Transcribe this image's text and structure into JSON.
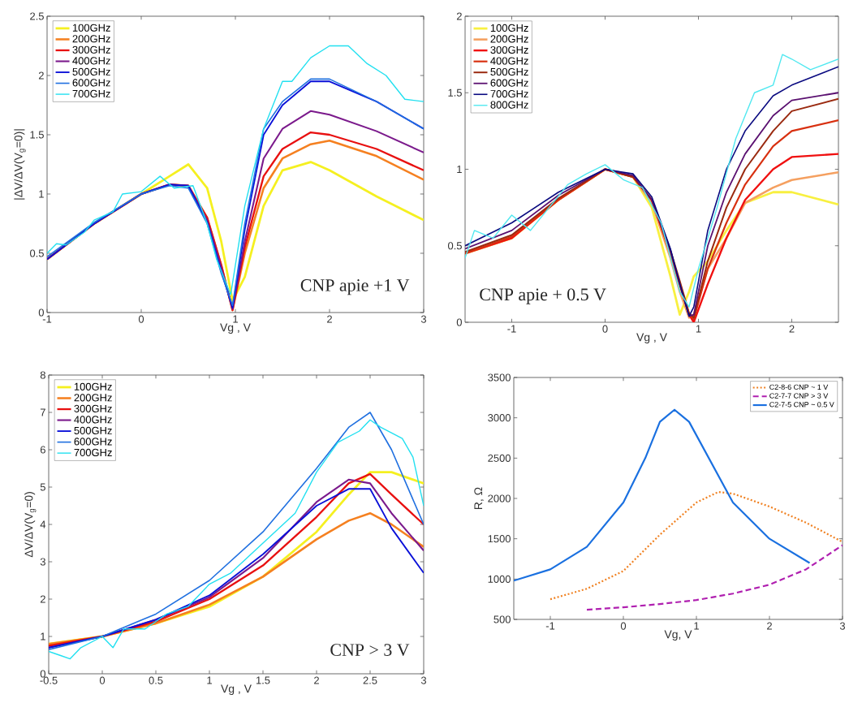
{
  "chart_data": [
    {
      "type": "line",
      "xlabel": "Vg , V",
      "ylabel": "|ΔV/ΔV(V$_{g}$=0)|",
      "xlim": [
        -1,
        3
      ],
      "ylim": [
        0,
        2.5
      ],
      "xticks": [
        -1,
        0,
        1,
        2,
        3
      ],
      "yticks": [
        0,
        0.5,
        1,
        1.5,
        2,
        2.5
      ],
      "legend": "top left",
      "annotations": [
        "CNP apie +1 V"
      ],
      "x": [
        -1,
        -0.5,
        0,
        0.3,
        0.5,
        0.7,
        0.85,
        0.97,
        1.1,
        1.3,
        1.5,
        1.8,
        2,
        2.5,
        3
      ],
      "series": [
        {
          "name": "100GHz",
          "color": "#f5f020",
          "values": [
            0.45,
            0.75,
            1.0,
            1.15,
            1.25,
            1.05,
            0.6,
            0.1,
            0.3,
            0.9,
            1.2,
            1.27,
            1.2,
            0.98,
            0.78
          ]
        },
        {
          "name": "200GHz",
          "color": "#f58020",
          "values": [
            0.45,
            0.75,
            1.0,
            1.08,
            1.07,
            0.8,
            0.4,
            0.02,
            0.5,
            1.05,
            1.3,
            1.42,
            1.45,
            1.32,
            1.12
          ]
        },
        {
          "name": "300GHz",
          "color": "#e81010",
          "values": [
            0.45,
            0.75,
            1.0,
            1.08,
            1.07,
            0.8,
            0.4,
            0.02,
            0.55,
            1.15,
            1.38,
            1.52,
            1.5,
            1.38,
            1.2
          ]
        },
        {
          "name": "400GHz",
          "color": "#7b1a8c",
          "values": [
            0.45,
            0.75,
            1.0,
            1.08,
            1.07,
            0.78,
            0.38,
            0.03,
            0.6,
            1.3,
            1.55,
            1.7,
            1.67,
            1.53,
            1.35
          ]
        },
        {
          "name": "500GHz",
          "color": "#0a10d8",
          "values": [
            0.45,
            0.75,
            1.0,
            1.08,
            1.07,
            0.76,
            0.35,
            0.04,
            0.7,
            1.5,
            1.75,
            1.95,
            1.95,
            1.78,
            1.55
          ]
        },
        {
          "name": "600GHz",
          "color": "#2070e0",
          "values": [
            0.47,
            0.76,
            1.0,
            1.07,
            1.05,
            0.75,
            0.33,
            0.06,
            0.75,
            1.55,
            1.78,
            1.97,
            1.97,
            1.78,
            1.55
          ]
        },
        {
          "name": "700GHz",
          "color": "#22e0f0",
          "x": [
            -1,
            -0.9,
            -0.8,
            -0.6,
            -0.5,
            -0.3,
            -0.2,
            0,
            0.2,
            0.35,
            0.55,
            0.7,
            0.8,
            0.95,
            1.1,
            1.3,
            1.5,
            1.6,
            1.8,
            2,
            2.2,
            2.4,
            2.6,
            2.8,
            3
          ],
          "values": [
            0.5,
            0.58,
            0.57,
            0.68,
            0.78,
            0.85,
            1.0,
            1.02,
            1.15,
            1.05,
            1.07,
            0.75,
            0.45,
            0.15,
            0.9,
            1.55,
            1.95,
            1.95,
            2.15,
            2.25,
            2.25,
            2.1,
            2.0,
            1.8,
            1.78
          ]
        }
      ]
    },
    {
      "type": "line",
      "xlabel": "Vg , V",
      "xlim": [
        -1.5,
        2.5
      ],
      "ylim": [
        0,
        2
      ],
      "xticks": [
        -1,
        0,
        1,
        2
      ],
      "yticks": [
        0,
        0.5,
        1,
        1.5,
        2
      ],
      "legend": "top left",
      "annotations": [
        "CNP apie + 0.5 V"
      ],
      "x": [
        -1.5,
        -1,
        -0.5,
        0,
        0.3,
        0.5,
        0.7,
        0.8,
        0.9,
        0.95,
        1.1,
        1.3,
        1.5,
        1.8,
        2,
        2.5
      ],
      "series": [
        {
          "name": "100GHz",
          "color": "#f8f040",
          "values": [
            0.45,
            0.55,
            0.8,
            1.0,
            0.95,
            0.75,
            0.3,
            0.05,
            0.2,
            0.3,
            0.4,
            0.6,
            0.78,
            0.85,
            0.85,
            0.77
          ]
        },
        {
          "name": "200GHz",
          "color": "#f5a060",
          "values": [
            0.45,
            0.55,
            0.8,
            1.0,
            0.95,
            0.78,
            0.42,
            0.2,
            0.03,
            0.05,
            0.35,
            0.55,
            0.78,
            0.88,
            0.93,
            0.98
          ]
        },
        {
          "name": "300GHz",
          "color": "#f01010",
          "values": [
            0.45,
            0.55,
            0.8,
            1.0,
            0.95,
            0.8,
            0.45,
            0.25,
            0.05,
            0.0,
            0.25,
            0.55,
            0.8,
            1.0,
            1.08,
            1.1
          ]
        },
        {
          "name": "400GHz",
          "color": "#d83010",
          "values": [
            0.45,
            0.56,
            0.8,
            1.0,
            0.95,
            0.8,
            0.45,
            0.25,
            0.05,
            0.02,
            0.35,
            0.65,
            0.9,
            1.15,
            1.25,
            1.32
          ]
        },
        {
          "name": "500GHz",
          "color": "#9a2a10",
          "values": [
            0.46,
            0.57,
            0.81,
            1.0,
            0.95,
            0.8,
            0.47,
            0.27,
            0.06,
            0.03,
            0.4,
            0.75,
            1.0,
            1.25,
            1.38,
            1.46
          ]
        },
        {
          "name": "600GHz",
          "color": "#5a1070",
          "values": [
            0.48,
            0.6,
            0.83,
            1.0,
            0.96,
            0.8,
            0.47,
            0.25,
            0.04,
            0.05,
            0.5,
            0.85,
            1.1,
            1.35,
            1.45,
            1.5
          ]
        },
        {
          "name": "700GHz",
          "color": "#0a0a80",
          "values": [
            0.5,
            0.65,
            0.85,
            1.0,
            0.97,
            0.82,
            0.48,
            0.25,
            0.04,
            0.1,
            0.6,
            1.0,
            1.25,
            1.48,
            1.55,
            1.67
          ]
        },
        {
          "name": "800GHz",
          "color": "#50e8f0",
          "x": [
            -1.5,
            -1.4,
            -1.2,
            -1,
            -0.8,
            -0.6,
            -0.4,
            -0.2,
            0,
            0.2,
            0.4,
            0.6,
            0.8,
            0.9,
            1.0,
            1.2,
            1.4,
            1.6,
            1.8,
            1.9,
            2,
            2.2,
            2.5
          ],
          "values": [
            0.42,
            0.6,
            0.55,
            0.7,
            0.6,
            0.75,
            0.9,
            0.97,
            1.03,
            0.93,
            0.88,
            0.65,
            0.2,
            0.1,
            0.35,
            0.75,
            1.2,
            1.5,
            1.55,
            1.75,
            1.72,
            1.65,
            1.72
          ]
        }
      ]
    },
    {
      "type": "line",
      "xlabel": "Vg , V",
      "ylabel": "ΔV/ΔV(V$_{g}$=0)",
      "xlim": [
        -0.5,
        3
      ],
      "ylim": [
        0,
        8
      ],
      "xticks": [
        -0.5,
        0,
        0.5,
        1,
        1.5,
        2,
        2.5,
        3
      ],
      "yticks": [
        0,
        1,
        2,
        3,
        4,
        5,
        6,
        7,
        8
      ],
      "legend": "top left",
      "annotations": [
        "CNP > 3 V"
      ],
      "x": [
        -0.5,
        0,
        0.5,
        1,
        1.5,
        2,
        2.3,
        2.5,
        2.7,
        3
      ],
      "series": [
        {
          "name": "100GHz",
          "color": "#f5f020",
          "values": [
            0.8,
            1.0,
            1.35,
            1.8,
            2.6,
            3.8,
            4.8,
            5.4,
            5.4,
            5.1
          ]
        },
        {
          "name": "200GHz",
          "color": "#f58020",
          "values": [
            0.8,
            1.0,
            1.35,
            1.85,
            2.6,
            3.6,
            4.1,
            4.3,
            4.0,
            3.4
          ]
        },
        {
          "name": "300GHz",
          "color": "#e81010",
          "values": [
            0.75,
            1.0,
            1.4,
            2.0,
            2.9,
            4.2,
            5.1,
            5.35,
            4.8,
            4.0
          ]
        },
        {
          "name": "400GHz",
          "color": "#7b1a8c",
          "values": [
            0.7,
            1.0,
            1.45,
            2.05,
            3.1,
            4.6,
            5.2,
            5.1,
            4.3,
            3.3
          ]
        },
        {
          "name": "500GHz",
          "color": "#0a10d8",
          "values": [
            0.7,
            1.0,
            1.45,
            2.1,
            3.2,
            4.5,
            4.95,
            4.95,
            3.9,
            2.7
          ]
        },
        {
          "name": "600GHz",
          "color": "#2070e0",
          "values": [
            0.65,
            1.0,
            1.6,
            2.5,
            3.8,
            5.5,
            6.6,
            7.0,
            6.0,
            4.0
          ]
        },
        {
          "name": "700GHz",
          "color": "#22e0f0",
          "x": [
            -0.5,
            -0.4,
            -0.3,
            -0.2,
            0,
            0.1,
            0.2,
            0.4,
            0.6,
            0.8,
            1,
            1.2,
            1.5,
            1.8,
            2,
            2.2,
            2.4,
            2.5,
            2.6,
            2.8,
            2.9,
            3
          ],
          "values": [
            0.6,
            0.5,
            0.4,
            0.7,
            1.0,
            0.7,
            1.2,
            1.2,
            1.6,
            1.8,
            2.4,
            2.7,
            3.5,
            4.3,
            5.4,
            6.2,
            6.5,
            6.8,
            6.6,
            6.3,
            5.8,
            4.5
          ]
        }
      ]
    },
    {
      "type": "line",
      "xlabel": "Vg, V",
      "ylabel": "R, Ω",
      "xlim": [
        -1.5,
        3
      ],
      "ylim": [
        500,
        3500
      ],
      "xticks": [
        -1,
        0,
        1,
        2,
        3
      ],
      "yticks": [
        500,
        1000,
        1500,
        2000,
        2500,
        3000,
        3500
      ],
      "legend": "top right",
      "series": [
        {
          "name": "C2-8-6 CNP ~ 1 V",
          "color": "#f08020",
          "line_style": "dotted",
          "x": [
            -1,
            -0.5,
            0,
            0.5,
            1,
            1.3,
            1.5,
            2,
            2.5,
            3
          ],
          "values": [
            750,
            880,
            1100,
            1550,
            1950,
            2080,
            2060,
            1900,
            1700,
            1460
          ]
        },
        {
          "name": "C2-7-7 CNP > 3 V",
          "color": "#b020b0",
          "line_style": "dashed",
          "x": [
            -0.5,
            0,
            0.5,
            1,
            1.5,
            2,
            2.5,
            3
          ],
          "values": [
            620,
            650,
            690,
            740,
            820,
            930,
            1120,
            1420
          ]
        },
        {
          "name": "C2-7-5 CNP ~ 0.5 V",
          "color": "#1a70e0",
          "line_style": "solid",
          "x": [
            -1.5,
            -1,
            -0.5,
            0,
            0.3,
            0.5,
            0.7,
            0.9,
            1.2,
            1.5,
            2,
            2.55
          ],
          "values": [
            980,
            1120,
            1400,
            1950,
            2500,
            2950,
            3100,
            2950,
            2450,
            1950,
            1500,
            1200
          ]
        }
      ]
    }
  ]
}
